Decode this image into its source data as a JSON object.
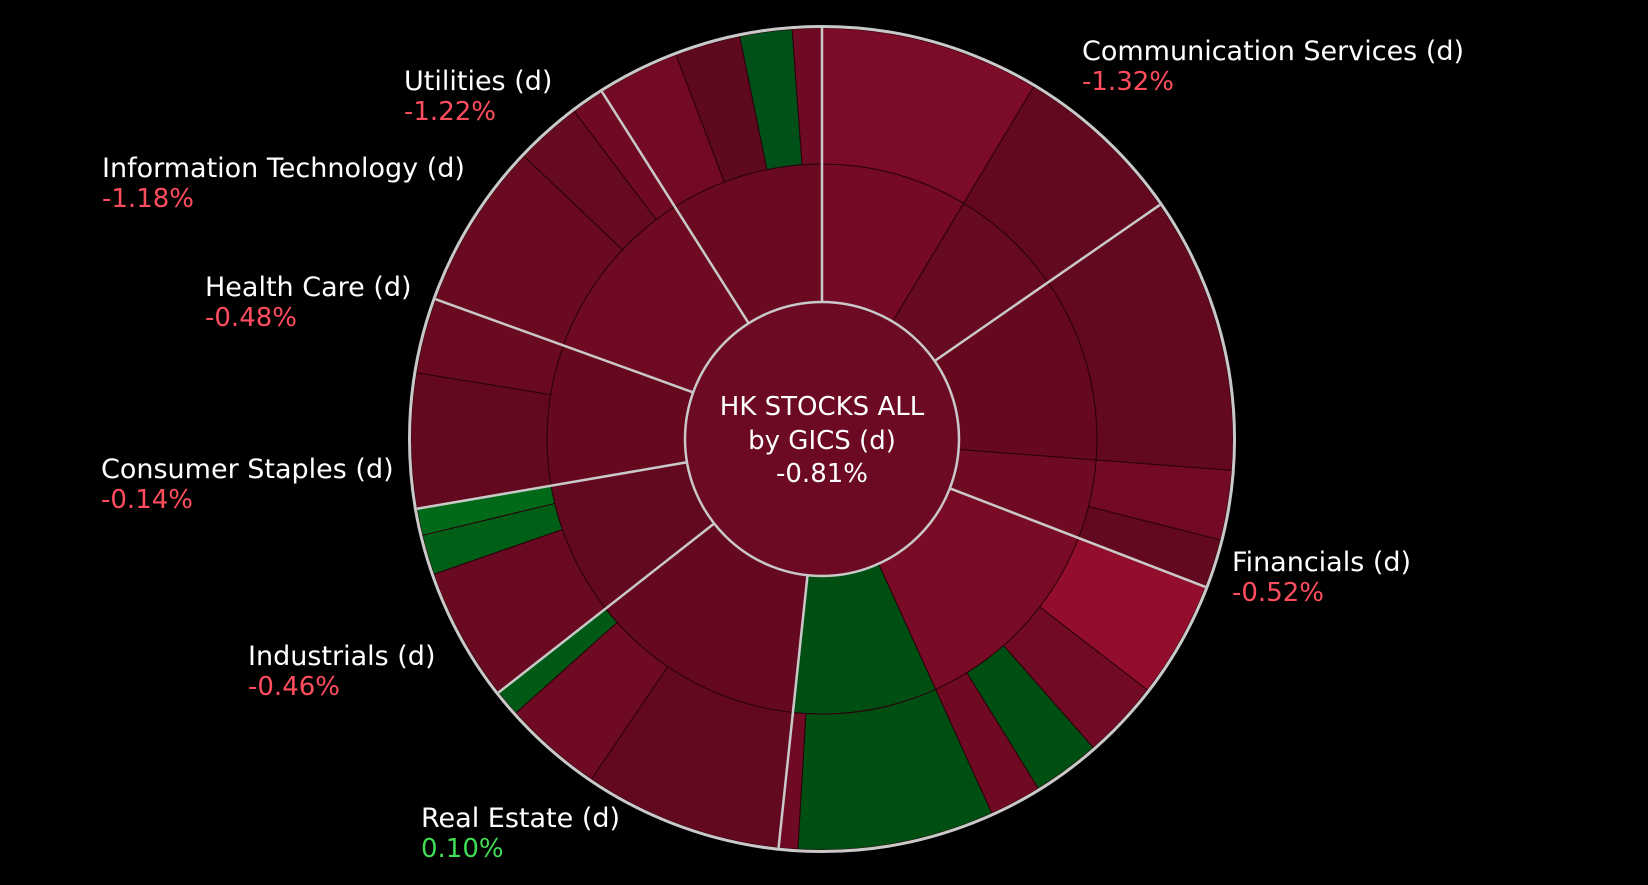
{
  "chart_data": {
    "type": "sunburst",
    "center": {
      "title_line1": "HK STOCKS ALL",
      "title_line2": "by GICS (d)",
      "change": "-0.81%"
    },
    "colors": {
      "background": "#000000",
      "sector_border": "#c9c9c9",
      "center_fill": "#6b0a22",
      "negative_text": "#ff4d5e",
      "positive_text": "#3fdc54"
    },
    "sectors": [
      {
        "name": "Communication Services (d)",
        "change": "-1.32%",
        "weight": 20.5,
        "color": "#740a26",
        "children": [
          {
            "weight": 11.5,
            "color": "#750a26",
            "children": [
              {
                "w": 1,
                "color": "#7c0b27"
              }
            ]
          },
          {
            "weight": 9.0,
            "color": "#650a20",
            "children": [
              {
                "w": 1,
                "color": "#62091f"
              }
            ]
          }
        ]
      },
      {
        "name": "Financials (d)",
        "change": "-0.52%",
        "weight": 20.7,
        "color": "#66091f",
        "children": [
          {
            "weight": 14.5,
            "color": "#66091f",
            "children": [
              {
                "w": 1,
                "color": "#62091f"
              }
            ]
          },
          {
            "weight": 6.2,
            "color": "#6f0a23",
            "children": [
              {
                "w": 1,
                "color": "#730a25"
              },
              {
                "w": 0.7,
                "color": "#63091f"
              }
            ]
          }
        ]
      },
      {
        "name": "Real Estate (d)",
        "change": "0.10%",
        "weight": 27.8,
        "color": "#004f12",
        "children": [
          {
            "weight": 16.5,
            "color": "#7a0b27",
            "children": [
              {
                "w": 4.5,
                "color": "#930e2c"
              },
              {
                "w": 3.0,
                "color": "#710a24"
              },
              {
                "w": 2.6,
                "color": "#004f12"
              },
              {
                "w": 2.0,
                "color": "#700a23"
              }
            ]
          },
          {
            "weight": 11.3,
            "color": "#004f12",
            "children": [
              {
                "w": 10.3,
                "color": "#004f12"
              },
              {
                "w": 1.0,
                "color": "#6e0a23"
              }
            ]
          }
        ]
      },
      {
        "name": "Industrials (d)",
        "change": "-0.46%",
        "weight": 17.0,
        "color": "#64091f",
        "children": [
          {
            "weight": 17.0,
            "color": "#64091f",
            "children": [
              {
                "w": 6.0,
                "color": "#63091f"
              },
              {
                "w": 3.0,
                "color": "#6f0a23"
              },
              {
                "w": 0.8,
                "color": "#005a15"
              }
            ]
          }
        ]
      },
      {
        "name": "Consumer Staples (d)",
        "change": "-0.14%",
        "weight": 10.5,
        "color": "#62091f",
        "children": [
          {
            "weight": 10.5,
            "color": "#62091f",
            "children": [
              {
                "w": 6.0,
                "color": "#6a0a21"
              },
              {
                "w": 1.8,
                "color": "#005f16"
              },
              {
                "w": 1.2,
                "color": "#006a18"
              }
            ]
          }
        ]
      },
      {
        "name": "Health Care (d)",
        "change": "-0.48%",
        "weight": 11.0,
        "color": "#66091f",
        "children": [
          {
            "weight": 11.0,
            "color": "#66091f",
            "children": [
              {
                "w": 4.5,
                "color": "#63091f"
              },
              {
                "w": 2.5,
                "color": "#6a0a21"
              }
            ]
          }
        ]
      },
      {
        "name": "Information Technology (d)",
        "change": "-1.18%",
        "weight": 14.0,
        "color": "#6f0a23",
        "children": [
          {
            "weight": 14.0,
            "color": "#6f0a23",
            "children": [
              {
                "w": 5.0,
                "color": "#6a0a21"
              },
              {
                "w": 2.0,
                "color": "#650a20"
              },
              {
                "w": 1.0,
                "color": "#700a23"
              }
            ]
          }
        ]
      },
      {
        "name": "Utilities (d)",
        "change": "-1.22%",
        "weight": 12.0,
        "color": "#6b0a22",
        "children": [
          {
            "weight": 12.0,
            "color": "#690a21",
            "children": [
              {
                "w": 5.0,
                "color": "#730a25"
              },
              {
                "w": 4.0,
                "color": "#5e091e"
              },
              {
                "w": 3.2,
                "color": "#00501a"
              },
              {
                "w": 1.8,
                "color": "#6e0a23"
              }
            ]
          }
        ]
      }
    ]
  }
}
